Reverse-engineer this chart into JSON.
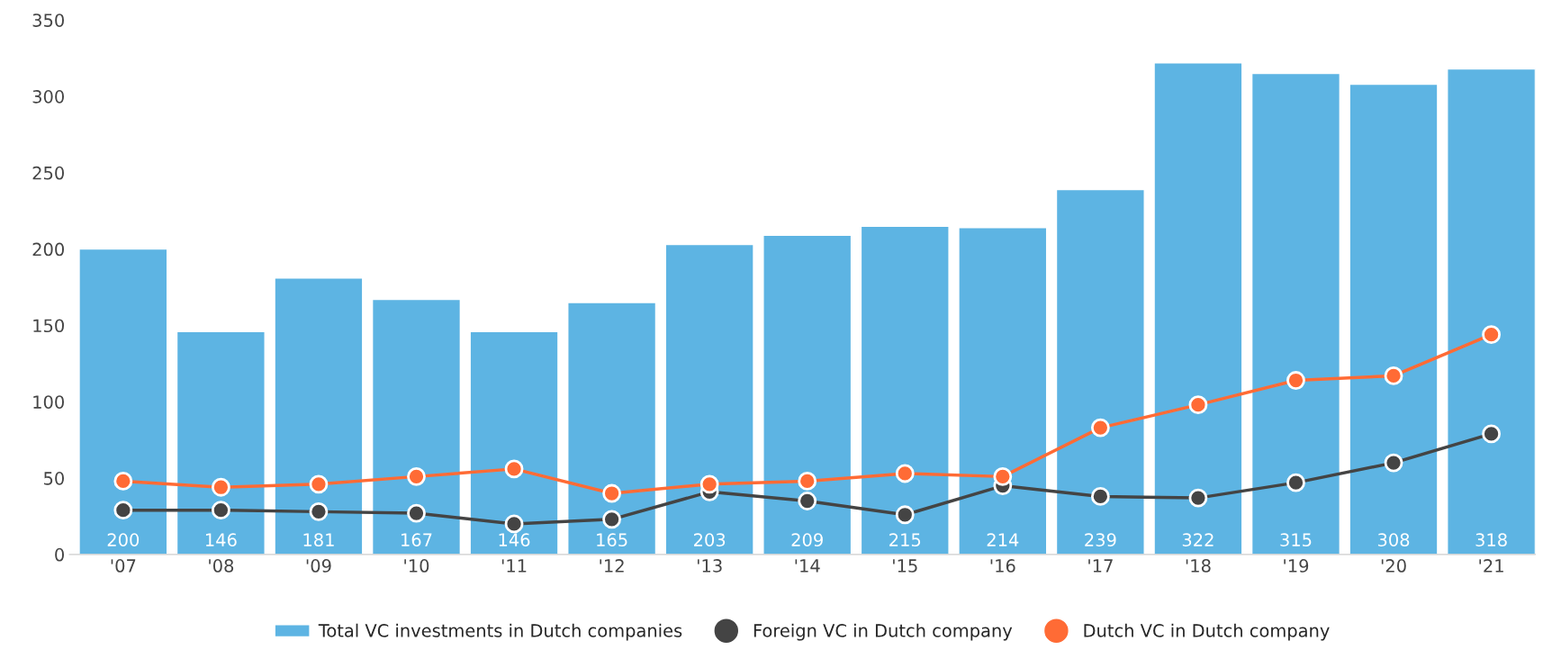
{
  "chart_data": {
    "type": "bar",
    "categories": [
      "'07",
      "'08",
      "'09",
      "'10",
      "'11",
      "'12",
      "'13",
      "'14",
      "'15",
      "'16",
      "'17",
      "'18",
      "'19",
      "'20",
      "'21"
    ],
    "series": [
      {
        "name": "Total VC investments in Dutch companies",
        "color": "#5db4e3",
        "values": [
          200,
          146,
          181,
          167,
          146,
          165,
          203,
          209,
          215,
          214,
          239,
          322,
          315,
          308,
          318
        ],
        "value_labels": [
          "200",
          "146",
          "181",
          "167",
          "146",
          "165",
          "203",
          "209",
          "215",
          "214",
          "239",
          "322",
          "315",
          "308",
          "318"
        ]
      },
      {
        "name": "Foreign VC in Dutch company",
        "type": "line",
        "color": "#444444",
        "values": [
          29,
          29,
          28,
          27,
          20,
          23,
          41,
          35,
          26,
          45,
          38,
          37,
          47,
          60,
          79
        ]
      },
      {
        "name": "Dutch VC in Dutch company",
        "type": "line",
        "color": "#ff6b35",
        "values": [
          48,
          44,
          46,
          51,
          56,
          40,
          46,
          48,
          53,
          51,
          83,
          98,
          114,
          117,
          144
        ]
      }
    ],
    "ylim": [
      0,
      350
    ],
    "yticks": [
      0,
      50,
      100,
      150,
      200,
      250,
      300,
      350
    ],
    "grid": false,
    "legend": "bottom",
    "marker": "circle",
    "line_style": "solid"
  }
}
